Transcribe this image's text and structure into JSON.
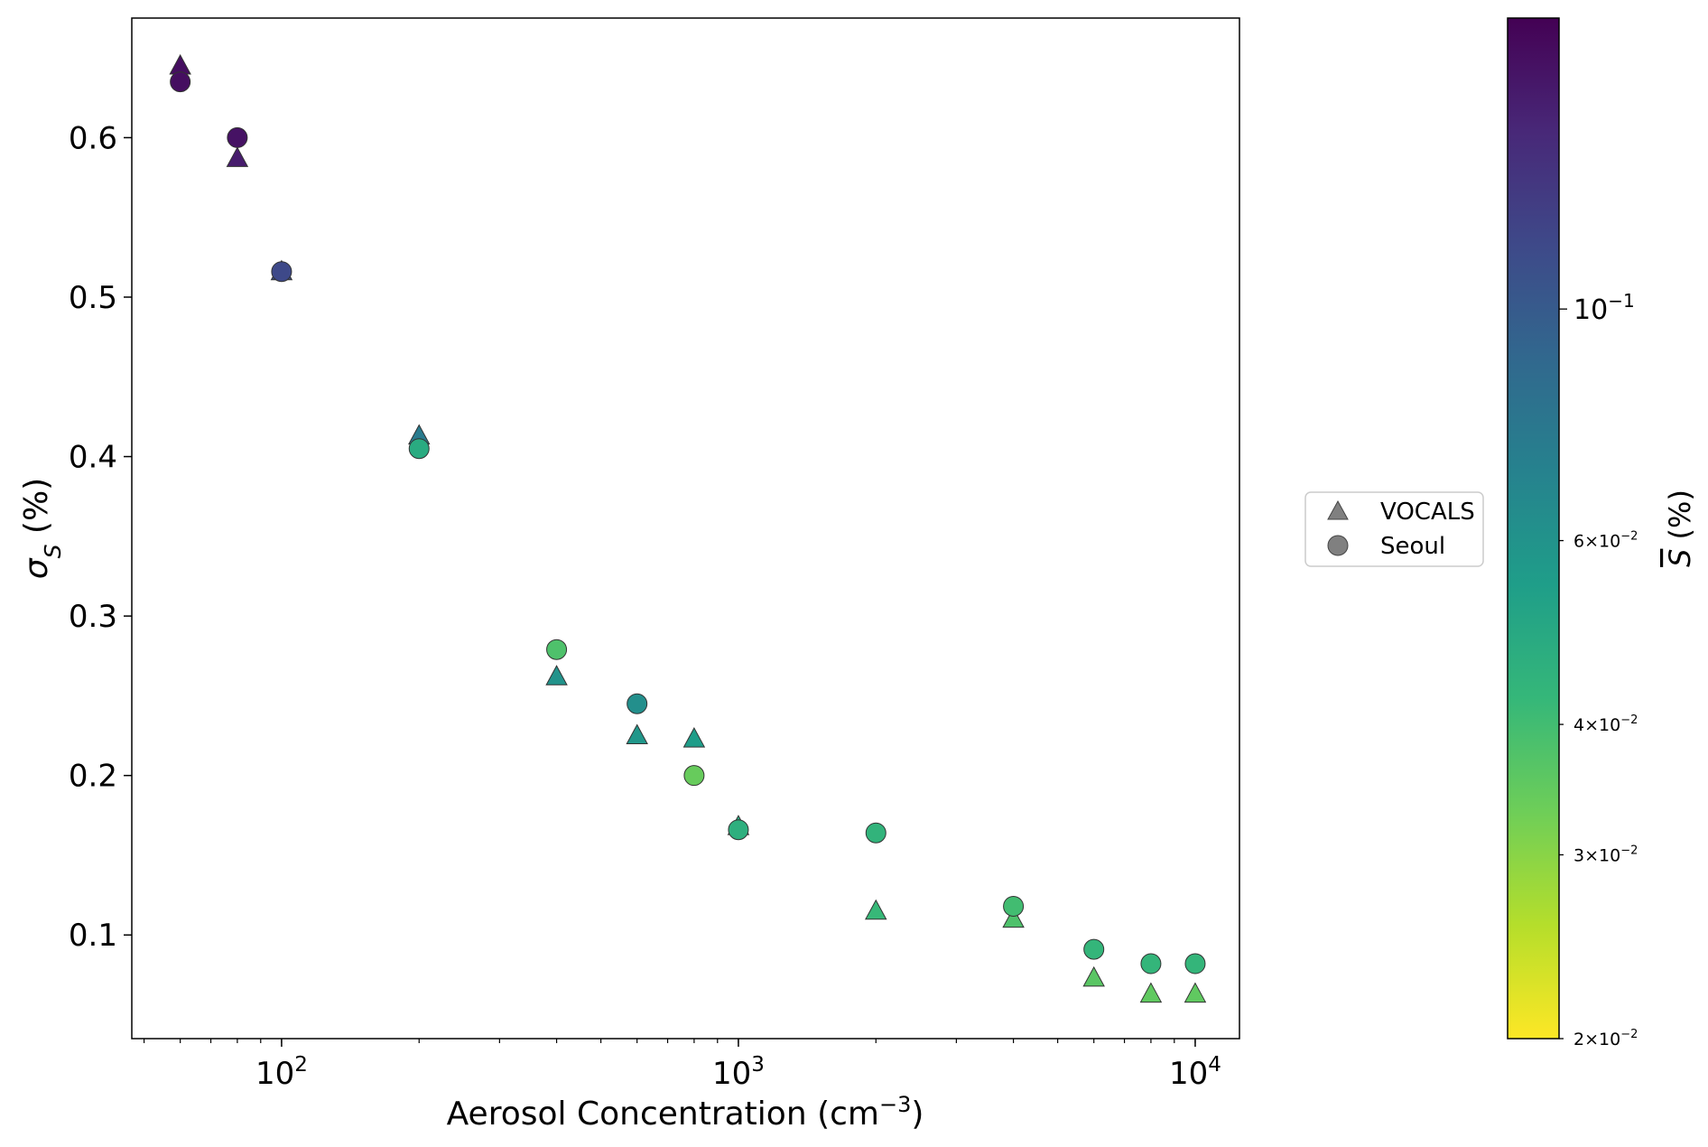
{
  "chart_data": {
    "type": "scatter",
    "title": "",
    "xlabel": {
      "base": "Aerosol Concentration (cm",
      "sup": "−3",
      "tail": ")"
    },
    "ylabel": {
      "main": "σ",
      "sub": "S",
      "tail": " (%)"
    },
    "xscale": "log",
    "xlim": [
      47,
      12500
    ],
    "ylim": [
      0.035,
      0.675
    ],
    "grid": false,
    "x_ticks": [
      {
        "value": 100,
        "base": "10",
        "exp": "2"
      },
      {
        "value": 1000,
        "base": "10",
        "exp": "3"
      },
      {
        "value": 10000,
        "base": "10",
        "exp": "4"
      }
    ],
    "y_ticks": [
      {
        "value": 0.1,
        "label": "0.1"
      },
      {
        "value": 0.2,
        "label": "0.2"
      },
      {
        "value": 0.3,
        "label": "0.3"
      },
      {
        "value": 0.4,
        "label": "0.4"
      },
      {
        "value": 0.5,
        "label": "0.5"
      },
      {
        "value": 0.6,
        "label": "0.6"
      }
    ],
    "legend": {
      "placement": "right",
      "entries": [
        {
          "label": "VOCALS",
          "marker": "triangle",
          "color": "#808080"
        },
        {
          "label": "Seoul",
          "marker": "circle",
          "color": "#808080"
        }
      ]
    },
    "colorbar": {
      "label": {
        "main": "S",
        "tail": " (%)"
      },
      "scale": "log",
      "range": [
        0.02,
        0.19
      ],
      "colormap": "viridis_r",
      "stops": [
        "#fde725",
        "#b5de2b",
        "#6ece58",
        "#35b779",
        "#1f9e89",
        "#26828e",
        "#31688e",
        "#3e4989",
        "#482878",
        "#440154"
      ],
      "ticks": [
        {
          "value": 0.1,
          "base": "10",
          "exp": "−1",
          "major": true
        },
        {
          "value": 0.06,
          "mant": "6",
          "base": "10",
          "exp": "−2",
          "major": false
        },
        {
          "value": 0.04,
          "mant": "4",
          "base": "10",
          "exp": "−2",
          "major": false
        },
        {
          "value": 0.03,
          "mant": "3",
          "base": "10",
          "exp": "−2",
          "major": false
        },
        {
          "value": 0.02,
          "mant": "2",
          "base": "10",
          "exp": "−2",
          "major": false
        }
      ]
    },
    "series": [
      {
        "name": "VOCALS",
        "marker": "triangle",
        "points": [
          {
            "x": 60,
            "y": 0.645,
            "c": 0.175
          },
          {
            "x": 80,
            "y": 0.587,
            "c": 0.16
          },
          {
            "x": 100,
            "y": 0.516,
            "c": 0.11
          },
          {
            "x": 200,
            "y": 0.413,
            "c": 0.075
          },
          {
            "x": 400,
            "y": 0.262,
            "c": 0.06
          },
          {
            "x": 600,
            "y": 0.225,
            "c": 0.058
          },
          {
            "x": 800,
            "y": 0.223,
            "c": 0.055
          },
          {
            "x": 1000,
            "y": 0.168,
            "c": 0.048
          },
          {
            "x": 2000,
            "y": 0.115,
            "c": 0.042
          },
          {
            "x": 4000,
            "y": 0.11,
            "c": 0.038
          },
          {
            "x": 6000,
            "y": 0.073,
            "c": 0.036
          },
          {
            "x": 8000,
            "y": 0.063,
            "c": 0.035
          },
          {
            "x": 10000,
            "y": 0.063,
            "c": 0.035
          }
        ]
      },
      {
        "name": "Seoul",
        "marker": "circle",
        "points": [
          {
            "x": 60,
            "y": 0.635,
            "c": 0.175
          },
          {
            "x": 80,
            "y": 0.6,
            "c": 0.17
          },
          {
            "x": 100,
            "y": 0.516,
            "c": 0.115
          },
          {
            "x": 200,
            "y": 0.405,
            "c": 0.048
          },
          {
            "x": 400,
            "y": 0.279,
            "c": 0.038
          },
          {
            "x": 600,
            "y": 0.245,
            "c": 0.062
          },
          {
            "x": 800,
            "y": 0.2,
            "c": 0.034
          },
          {
            "x": 1000,
            "y": 0.166,
            "c": 0.046
          },
          {
            "x": 2000,
            "y": 0.164,
            "c": 0.044
          },
          {
            "x": 4000,
            "y": 0.118,
            "c": 0.04
          },
          {
            "x": 6000,
            "y": 0.091,
            "c": 0.043
          },
          {
            "x": 8000,
            "y": 0.082,
            "c": 0.043
          },
          {
            "x": 10000,
            "y": 0.082,
            "c": 0.043
          }
        ]
      }
    ]
  }
}
